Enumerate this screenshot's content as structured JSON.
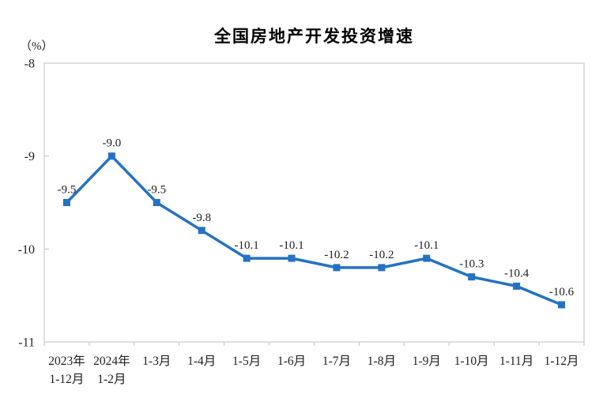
{
  "chart_data": {
    "type": "line",
    "title": "全国房地产开发投资增速",
    "unit": "（%）",
    "categories": [
      "2023年\n1-12月",
      "2024年\n1-2月",
      "1-3月",
      "1-4月",
      "1-5月",
      "1-6月",
      "1-7月",
      "1-8月",
      "1-9月",
      "1-10月",
      "1-11月",
      "1-12月"
    ],
    "values": [
      -9.5,
      -9.0,
      -9.5,
      -9.8,
      -10.1,
      -10.1,
      -10.2,
      -10.2,
      -10.1,
      -10.3,
      -10.4,
      -10.6
    ],
    "data_labels": [
      "-9.5",
      "-9.0",
      "-9.5",
      "-9.8",
      "-10.1",
      "-10.1",
      "-10.2",
      "-10.2",
      "-10.1",
      "-10.3",
      "-10.4",
      "-10.6"
    ],
    "ylim": [
      -11,
      -8
    ],
    "y_ticks": [
      -8,
      -9,
      -10,
      -11
    ],
    "y_tick_labels": [
      "-8",
      "-9",
      "-10",
      "-11"
    ],
    "grid": false,
    "legend": "none",
    "marker": "square",
    "line_color": "#2571c4",
    "label_color": "#1f1f1f",
    "axis_color": "#bfbfbf"
  }
}
